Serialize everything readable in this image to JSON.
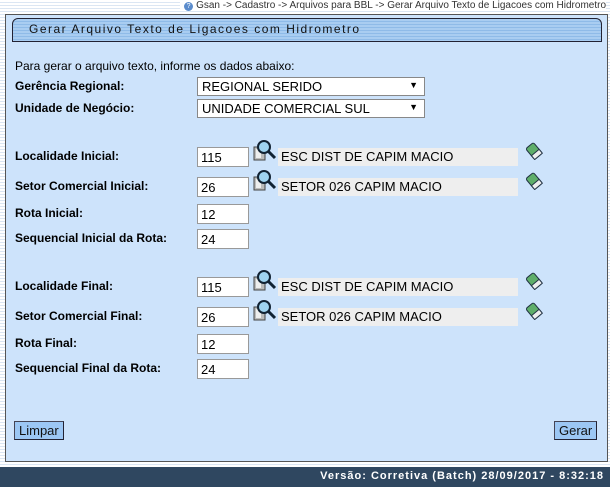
{
  "breadcrumb": "Gsan -> Cadastro -> Arquivos para BBL -> Gerar Arquivo Texto de Ligacoes com Hidrometro",
  "title": "Gerar Arquivo Texto de Ligacoes com Hidrometro",
  "intro": "Para gerar o arquivo texto, informe os dados abaixo:",
  "gerencia": {
    "label": "Gerência Regional:",
    "value": "REGIONAL SERIDO"
  },
  "unidade": {
    "label": "Unidade de Negócio:",
    "value": "UNIDADE COMERCIAL SUL"
  },
  "inicial": {
    "localidade": {
      "label": "Localidade Inicial:",
      "value": "115",
      "desc": "ESC DIST DE CAPIM MACIO"
    },
    "setor": {
      "label": "Setor Comercial Inicial:",
      "value": "26",
      "desc": "SETOR 026 CAPIM MACIO"
    },
    "rota": {
      "label": "Rota Inicial:",
      "value": "12"
    },
    "sequencial": {
      "label": "Sequencial Inicial da Rota:",
      "value": "24"
    }
  },
  "final": {
    "localidade": {
      "label": "Localidade Final:",
      "value": "115",
      "desc": "ESC DIST DE CAPIM MACIO"
    },
    "setor": {
      "label": "Setor Comercial Final:",
      "value": "26",
      "desc": "SETOR 026 CAPIM MACIO"
    },
    "rota": {
      "label": "Rota Final:",
      "value": "12"
    },
    "sequencial": {
      "label": "Sequencial Final da Rota:",
      "value": "24"
    }
  },
  "buttons": {
    "limpar": "Limpar",
    "gerar": "Gerar"
  },
  "footer": "Versão: Corretiva (Batch) 28/09/2017 - 8:32:18",
  "colors": {
    "panel": "#cde3fb",
    "header": "#a9cdf1",
    "footer": "#2f4760",
    "button": "#9cc7f4"
  }
}
